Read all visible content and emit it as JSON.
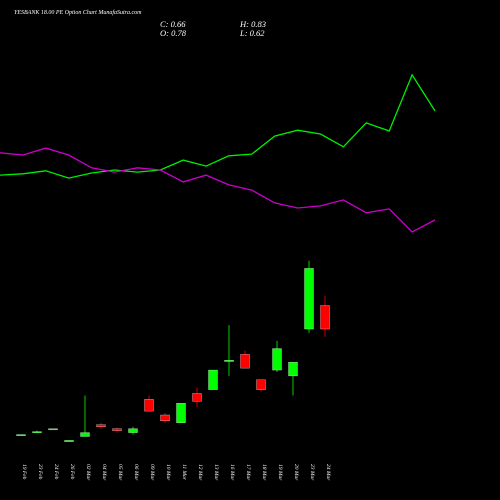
{
  "chart_data": {
    "type": "candlestick",
    "title": "YESBANK 18.00 PE Option Chart MunafaSutra.com",
    "info": [
      "C: 0.66",
      "H: 0.83",
      "O: 0.78",
      "L: 0.62"
    ],
    "categories": [
      "19 Feb",
      "23 Feb",
      "24 Feb",
      "26 Feb",
      "02 Mar",
      "04 Mar",
      "05 Mar",
      "06 Mar",
      "09 Mar",
      "10 Mar",
      "11 Mar",
      "12 Mar",
      "13 Mar",
      "16 Mar",
      "17 Mar",
      "18 Mar",
      "19 Mar",
      "20 Mar",
      "23 Mar",
      "24 Mar"
    ],
    "open": [
      0.12,
      0.13,
      0.15,
      0.09,
      0.11,
      0.17,
      0.15,
      0.13,
      0.3,
      0.22,
      0.18,
      0.33,
      0.35,
      0.5,
      0.53,
      0.4,
      0.45,
      0.42,
      0.66,
      0.78
    ],
    "high": [
      0.12,
      0.14,
      0.15,
      0.09,
      0.32,
      0.18,
      0.155,
      0.16,
      0.32,
      0.23,
      0.28,
      0.36,
      0.45,
      0.68,
      0.55,
      0.4,
      0.6,
      0.49,
      1.01,
      0.83
    ],
    "low": [
      0.12,
      0.13,
      0.15,
      0.09,
      0.11,
      0.15,
      0.13,
      0.12,
      0.24,
      0.18,
      0.18,
      0.26,
      0.35,
      0.42,
      0.46,
      0.34,
      0.44,
      0.32,
      0.64,
      0.62
    ],
    "close": [
      0.12,
      0.135,
      0.15,
      0.09,
      0.13,
      0.16,
      0.14,
      0.15,
      0.24,
      0.19,
      0.28,
      0.29,
      0.45,
      0.5,
      0.46,
      0.35,
      0.56,
      0.49,
      0.97,
      0.66
    ],
    "up_color": "#00ff00",
    "down_color": "#ff0000",
    "ylim": [
      0,
      2.19
    ],
    "y2lim": [
      0,
      100
    ],
    "series": [
      {
        "color": "#00ee00",
        "axis": "y2",
        "values": [
          66.1,
          66.4,
          67.1,
          65.4,
          66.6,
          67.3,
          66.8,
          67.3,
          69.6,
          68.2,
          70.6,
          71.0,
          75.2,
          76.6,
          75.7,
          72.7,
          78.3,
          76.4,
          89.5,
          81.1
        ]
      },
      {
        "color": "#cc00cc",
        "axis": "y2",
        "values": [
          71.3,
          70.8,
          72.4,
          70.8,
          67.8,
          66.8,
          67.8,
          67.3,
          64.5,
          66.1,
          63.8,
          62.6,
          59.6,
          58.4,
          58.9,
          60.3,
          57.3,
          58.2,
          52.8,
          55.6
        ]
      }
    ]
  }
}
